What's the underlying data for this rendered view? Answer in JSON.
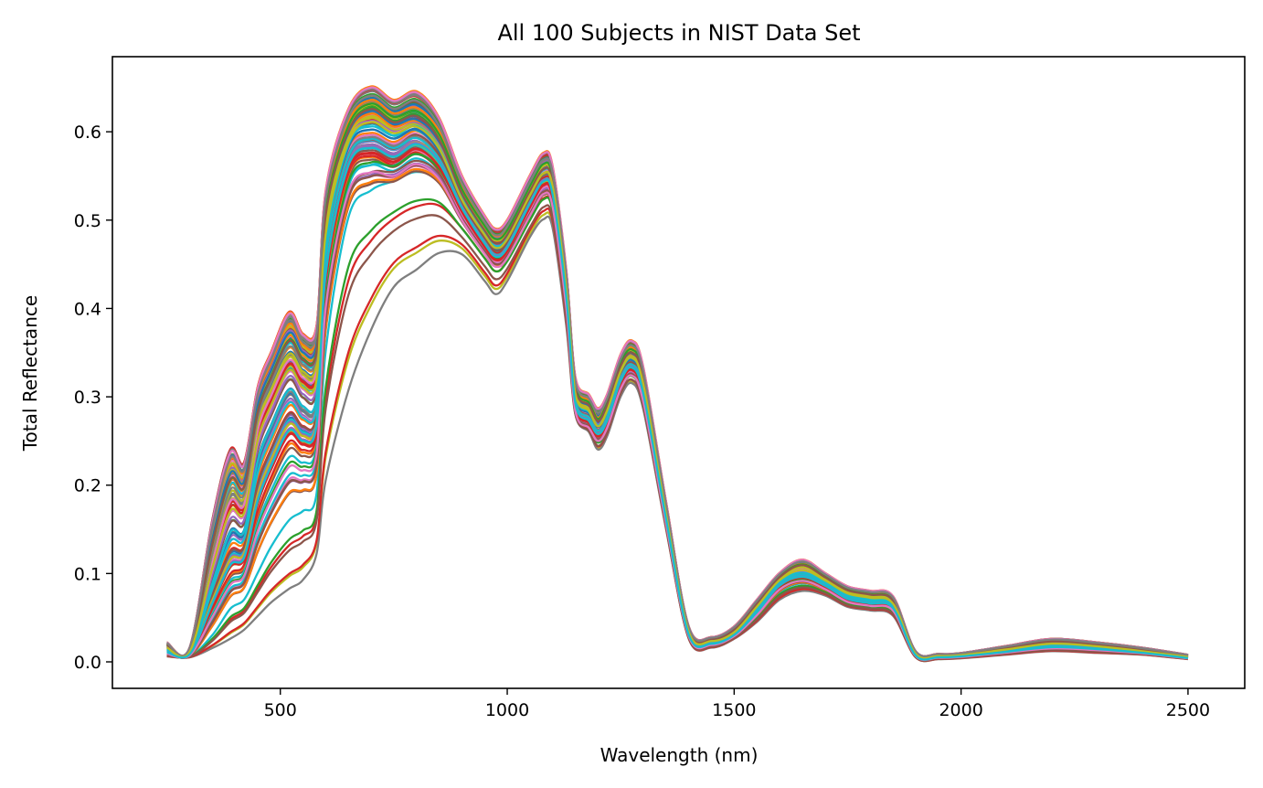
{
  "chart_data": {
    "type": "line",
    "title": "All 100 Subjects in NIST Data Set",
    "xlabel": "Wavelength (nm)",
    "ylabel": "Total Reflectance",
    "xlim": [
      130,
      2625
    ],
    "ylim": [
      -0.03,
      0.685
    ],
    "xticks": [
      500,
      1000,
      1500,
      2000,
      2500
    ],
    "xtick_labels": [
      "500",
      "1000",
      "1500",
      "2000",
      "2500"
    ],
    "yticks": [
      0.0,
      0.1,
      0.2,
      0.3,
      0.4,
      0.5,
      0.6
    ],
    "ytick_labels": [
      "0.0",
      "0.1",
      "0.2",
      "0.3",
      "0.4",
      "0.5",
      "0.6"
    ],
    "grid": false,
    "legend": "none",
    "n_series": 100,
    "palette": [
      "#1f77b4",
      "#ff7f0e",
      "#2ca02c",
      "#d62728",
      "#9467bd",
      "#8c564b",
      "#e377c2",
      "#7f7f7f",
      "#bcbd22",
      "#17becf"
    ],
    "x": [
      250,
      300,
      350,
      390,
      420,
      450,
      480,
      520,
      550,
      580,
      600,
      650,
      700,
      750,
      800,
      850,
      900,
      950,
      975,
      1000,
      1050,
      1080,
      1100,
      1130,
      1150,
      1180,
      1200,
      1220,
      1250,
      1275,
      1300,
      1350,
      1400,
      1450,
      1500,
      1550,
      1600,
      1650,
      1700,
      1750,
      1800,
      1850,
      1900,
      1950,
      2000,
      2100,
      2200,
      2300,
      2400,
      2500
    ],
    "series": [
      {
        "values": [
          0.022,
          0.016,
          0.16,
          0.24,
          0.225,
          0.31,
          0.35,
          0.395,
          0.37,
          0.38,
          0.53,
          0.62,
          0.645,
          0.63,
          0.64,
          0.61,
          0.545,
          0.5,
          0.485,
          0.495,
          0.545,
          0.57,
          0.555,
          0.44,
          0.32,
          0.3,
          0.285,
          0.3,
          0.345,
          0.36,
          0.33,
          0.18,
          0.04,
          0.028,
          0.04,
          0.07,
          0.1,
          0.115,
          0.1,
          0.085,
          0.08,
          0.074,
          0.012,
          0.009,
          0.01,
          0.018,
          0.026,
          0.022,
          0.016,
          0.008
        ]
      },
      {
        "values": [
          0.018,
          0.012,
          0.12,
          0.19,
          0.185,
          0.27,
          0.31,
          0.35,
          0.33,
          0.34,
          0.5,
          0.6,
          0.625,
          0.61,
          0.615,
          0.59,
          0.53,
          0.49,
          0.475,
          0.485,
          0.535,
          0.56,
          0.545,
          0.43,
          0.31,
          0.29,
          0.27,
          0.29,
          0.335,
          0.35,
          0.32,
          0.17,
          0.035,
          0.025,
          0.035,
          0.065,
          0.095,
          0.108,
          0.095,
          0.08,
          0.075,
          0.068,
          0.01,
          0.007,
          0.008,
          0.015,
          0.022,
          0.019,
          0.013,
          0.006
        ]
      },
      {
        "values": [
          0.014,
          0.01,
          0.09,
          0.15,
          0.15,
          0.23,
          0.27,
          0.31,
          0.29,
          0.3,
          0.47,
          0.58,
          0.6,
          0.59,
          0.6,
          0.575,
          0.52,
          0.48,
          0.465,
          0.475,
          0.525,
          0.55,
          0.535,
          0.42,
          0.3,
          0.28,
          0.265,
          0.28,
          0.325,
          0.34,
          0.31,
          0.165,
          0.033,
          0.022,
          0.032,
          0.06,
          0.09,
          0.1,
          0.09,
          0.075,
          0.07,
          0.064,
          0.008,
          0.006,
          0.007,
          0.013,
          0.019,
          0.016,
          0.011,
          0.005
        ]
      },
      {
        "values": [
          0.01,
          0.008,
          0.06,
          0.1,
          0.11,
          0.17,
          0.21,
          0.25,
          0.24,
          0.26,
          0.43,
          0.555,
          0.575,
          0.565,
          0.58,
          0.56,
          0.51,
          0.47,
          0.455,
          0.465,
          0.515,
          0.54,
          0.525,
          0.41,
          0.29,
          0.27,
          0.255,
          0.27,
          0.315,
          0.33,
          0.3,
          0.16,
          0.03,
          0.02,
          0.03,
          0.055,
          0.085,
          0.095,
          0.085,
          0.07,
          0.065,
          0.06,
          0.007,
          0.005,
          0.006,
          0.011,
          0.016,
          0.014,
          0.01,
          0.004
        ]
      },
      {
        "values": [
          0.008,
          0.006,
          0.03,
          0.06,
          0.07,
          0.1,
          0.13,
          0.16,
          0.17,
          0.19,
          0.35,
          0.5,
          0.53,
          0.54,
          0.55,
          0.54,
          0.5,
          0.465,
          0.45,
          0.46,
          0.505,
          0.53,
          0.515,
          0.4,
          0.285,
          0.265,
          0.25,
          0.265,
          0.31,
          0.325,
          0.295,
          0.155,
          0.028,
          0.018,
          0.028,
          0.05,
          0.078,
          0.088,
          0.08,
          0.066,
          0.062,
          0.056,
          0.006,
          0.004,
          0.005,
          0.01,
          0.014,
          0.012,
          0.009,
          0.004
        ]
      },
      {
        "values": [
          0.006,
          0.005,
          0.015,
          0.025,
          0.035,
          0.05,
          0.065,
          0.08,
          0.09,
          0.12,
          0.2,
          0.3,
          0.37,
          0.42,
          0.44,
          0.46,
          0.46,
          0.43,
          0.415,
          0.43,
          0.48,
          0.5,
          0.49,
          0.38,
          0.28,
          0.26,
          0.24,
          0.255,
          0.3,
          0.315,
          0.285,
          0.15,
          0.026,
          0.016,
          0.026,
          0.045,
          0.07,
          0.08,
          0.075,
          0.062,
          0.058,
          0.052,
          0.005,
          0.003,
          0.004,
          0.008,
          0.012,
          0.01,
          0.008,
          0.003
        ]
      }
    ]
  }
}
